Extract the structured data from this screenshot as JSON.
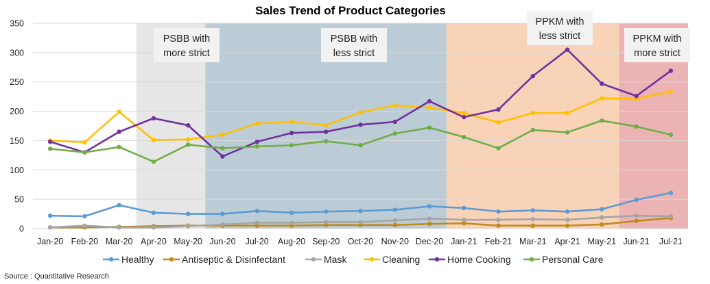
{
  "chart_data": {
    "type": "line",
    "title": "Sales Trend of Product Categories",
    "categories": [
      "Jan-20",
      "Feb-20",
      "Mar-20",
      "Apr-20",
      "May-20",
      "Jun-20",
      "Jul-20",
      "Aug-20",
      "Sep-20",
      "Oct-20",
      "Nov-20",
      "Dec-20",
      "Jan-21",
      "Feb-21",
      "Mar-21",
      "Apr-21",
      "May-21",
      "Jun-21",
      "Jul-21"
    ],
    "ylim": [
      0,
      350
    ],
    "yticks": [
      0,
      50,
      100,
      150,
      200,
      250,
      300,
      350
    ],
    "grid": true,
    "series": [
      {
        "name": "Healthy",
        "color": "#5B9BD5",
        "values": [
          22,
          21,
          40,
          27,
          25,
          25,
          30,
          27,
          29,
          30,
          32,
          38,
          35,
          29,
          31,
          29,
          33,
          49,
          61
        ]
      },
      {
        "name": "Antiseptic & Disinfectant",
        "color": "#C08A1E",
        "values": [
          2,
          2,
          3,
          4,
          5,
          5,
          5,
          5,
          6,
          6,
          6,
          8,
          9,
          5,
          5,
          5,
          7,
          13,
          18
        ]
      },
      {
        "name": "Mask",
        "color": "#A5A5A5",
        "values": [
          2,
          5,
          2,
          2,
          4,
          7,
          10,
          10,
          11,
          11,
          14,
          17,
          15,
          15,
          16,
          15,
          19,
          22,
          21
        ]
      },
      {
        "name": "Cleaning",
        "color": "#FFC000",
        "values": [
          150,
          147,
          199,
          151,
          152,
          160,
          179,
          182,
          176,
          198,
          210,
          206,
          197,
          181,
          197,
          197,
          222,
          221,
          234
        ]
      },
      {
        "name": "Home Cooking",
        "color": "#7030A0",
        "values": [
          148,
          130,
          165,
          188,
          176,
          123,
          148,
          163,
          165,
          177,
          182,
          217,
          190,
          203,
          260,
          305,
          247,
          226,
          269
        ]
      },
      {
        "name": "Personal Care",
        "color": "#70AD47",
        "values": [
          136,
          130,
          139,
          114,
          143,
          137,
          140,
          142,
          149,
          142,
          162,
          172,
          156,
          137,
          168,
          164,
          184,
          174,
          160
        ]
      }
    ],
    "phases": [
      {
        "label": "PSBB with more strict",
        "lines": [
          "PSBB with",
          "more strict"
        ],
        "from": 2.5,
        "to": 4.5,
        "color": "#E6E6E6"
      },
      {
        "label": "PSBB with less strict",
        "lines": [
          "PSBB with",
          "less strict"
        ],
        "from": 4.5,
        "to": 11.5,
        "color": "#BCCCD6"
      },
      {
        "label": "PPKM with less strict",
        "lines": [
          "PPKM with",
          "less strict"
        ],
        "from": 11.5,
        "to": 16.5,
        "color": "#F8D3B8"
      },
      {
        "label": "PPKM with more strict",
        "lines": [
          "PPKM with",
          "more strict"
        ],
        "from": 16.5,
        "to": 18.5,
        "color": "#EBB3B3"
      }
    ]
  },
  "source_note": "Source : Quantitative Research"
}
